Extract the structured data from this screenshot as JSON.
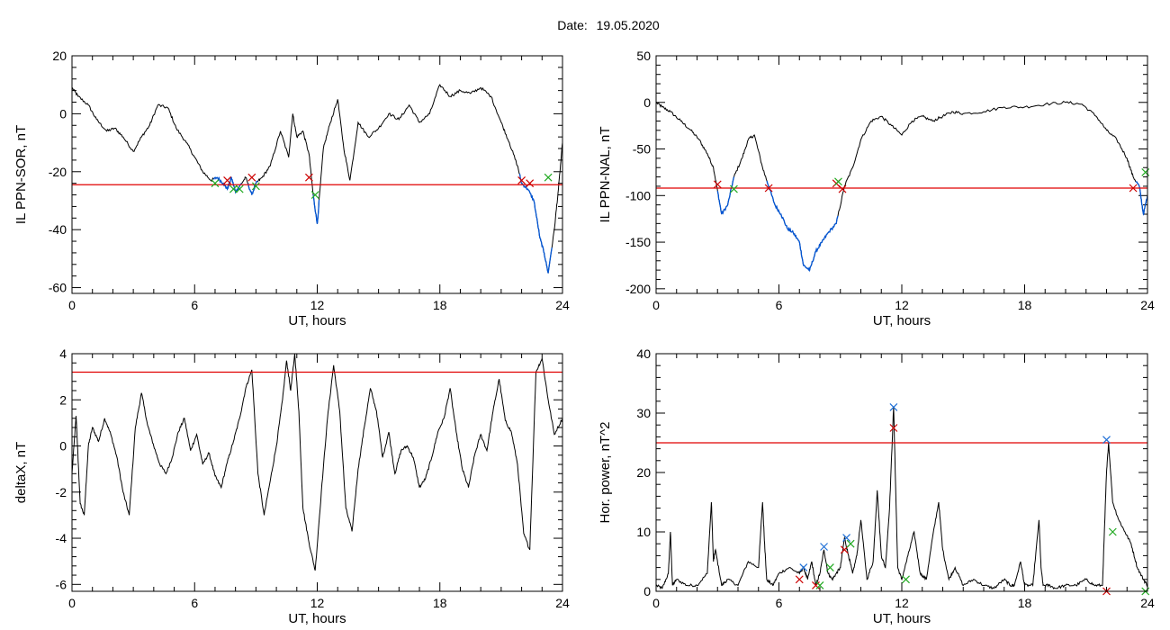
{
  "header": {
    "date_label": "Date:",
    "date_value": "19.05.2020"
  },
  "colors": {
    "trace": "#000000",
    "highlight": "#0055d4",
    "threshold": "#e00000",
    "marker_red": "#cc0000",
    "marker_green": "#22aa22",
    "marker_blue": "#1f6fd6"
  },
  "chart_data": [
    {
      "id": "p1",
      "type": "line",
      "ylabel": "IL PPN-SOR, nT",
      "xlabel": "UT, hours",
      "xlim": [
        0,
        24
      ],
      "ylim": [
        -62,
        20
      ],
      "xticks": [
        0,
        6,
        12,
        18,
        24
      ],
      "yticks": [
        20,
        0,
        -20,
        -40,
        -60
      ],
      "threshold": -24.5,
      "series": [
        {
          "x": [
            0,
            0.3,
            0.8,
            1.2,
            1.7,
            2.1,
            2.5,
            3.0,
            3.4,
            3.8,
            4.2,
            4.7,
            5.1,
            5.6,
            6.0,
            6.4,
            6.8,
            7.1,
            7.4,
            7.6,
            7.8,
            8.0,
            8.2,
            8.5,
            8.8,
            9.0,
            9.3,
            9.7,
            10.2,
            10.6,
            10.8,
            11.0,
            11.3,
            11.6,
            11.8,
            12.0,
            12.3,
            12.6,
            13.0,
            13.3,
            13.6,
            14.0,
            14.5,
            15.0,
            15.5,
            16.0,
            16.5,
            17.0,
            17.5,
            18.0,
            18.5,
            19.0,
            19.5,
            20.0,
            20.5,
            21.0,
            21.4,
            21.8,
            22.0,
            22.3,
            22.6,
            22.9,
            23.1,
            23.3,
            23.6,
            23.8,
            24.0
          ],
          "y": [
            9,
            6,
            3,
            -2,
            -6,
            -5,
            -8,
            -13,
            -8,
            -4,
            3,
            2,
            -5,
            -10,
            -15,
            -20,
            -23,
            -22,
            -24,
            -26,
            -22,
            -27,
            -25,
            -22,
            -28,
            -24,
            -22,
            -18,
            -6,
            -15,
            0,
            -8,
            -6,
            -14,
            -28,
            -38,
            -12,
            -4,
            5,
            -12,
            -23,
            -3,
            -8,
            -5,
            0,
            -2,
            3,
            -3,
            0,
            10,
            6,
            8,
            7,
            9,
            6,
            -3,
            -10,
            -18,
            -24,
            -26,
            -30,
            -43,
            -48,
            -55,
            -40,
            -26,
            -10
          ]
        }
      ],
      "segments": [
        [
          6.9,
          8.3
        ],
        [
          8.6,
          9.1
        ],
        [
          11.8,
          12.1
        ],
        [
          21.9,
          23.5
        ]
      ],
      "markers_red": [
        [
          7.6,
          -23
        ],
        [
          8.8,
          -22
        ],
        [
          11.6,
          -22
        ],
        [
          22.0,
          -23
        ],
        [
          22.4,
          -24
        ]
      ],
      "markers_green": [
        [
          7.0,
          -24
        ],
        [
          7.9,
          -26
        ],
        [
          8.2,
          -26
        ],
        [
          9.0,
          -25
        ],
        [
          11.9,
          -28
        ],
        [
          23.3,
          -22
        ]
      ]
    },
    {
      "id": "p2",
      "type": "line",
      "ylabel": "IL PPN-NAL, nT",
      "xlabel": "UT, hours",
      "xlim": [
        0,
        24
      ],
      "ylim": [
        -205,
        50
      ],
      "xticks": [
        0,
        6,
        12,
        18,
        24
      ],
      "yticks": [
        50,
        0,
        -50,
        -100,
        -150,
        -200
      ],
      "threshold": -92,
      "series": [
        {
          "x": [
            0,
            0.3,
            0.7,
            1.2,
            1.7,
            2.1,
            2.5,
            2.8,
            3.0,
            3.2,
            3.5,
            3.8,
            4.2,
            4.5,
            4.8,
            5.2,
            5.5,
            5.8,
            6.1,
            6.4,
            6.7,
            7.0,
            7.2,
            7.5,
            7.8,
            8.1,
            8.4,
            8.8,
            9.2,
            9.6,
            10.0,
            10.5,
            11.0,
            11.5,
            12.0,
            12.5,
            13.0,
            13.5,
            14.0,
            14.5,
            15.0,
            16.0,
            17.0,
            18.0,
            19.0,
            20.0,
            20.8,
            21.5,
            22.0,
            22.5,
            23.0,
            23.3,
            23.6,
            23.8,
            24.0
          ],
          "y": [
            0,
            -5,
            -10,
            -20,
            -30,
            -40,
            -55,
            -70,
            -95,
            -120,
            -110,
            -80,
            -60,
            -40,
            -35,
            -70,
            -90,
            -110,
            -120,
            -135,
            -140,
            -150,
            -175,
            -180,
            -160,
            -150,
            -140,
            -130,
            -90,
            -70,
            -40,
            -20,
            -15,
            -25,
            -35,
            -20,
            -15,
            -20,
            -15,
            -10,
            -12,
            -10,
            -5,
            -5,
            -2,
            0,
            -2,
            -15,
            -30,
            -40,
            -60,
            -80,
            -90,
            -120,
            -100
          ]
        }
      ],
      "segments": [
        [
          3.0,
          3.8
        ],
        [
          5.4,
          8.9
        ],
        [
          23.4,
          24.0
        ]
      ],
      "markers_red": [
        [
          3.0,
          -88
        ],
        [
          5.5,
          -92
        ],
        [
          8.8,
          -87
        ],
        [
          9.1,
          -93
        ],
        [
          23.3,
          -92
        ]
      ],
      "markers_green": [
        [
          3.8,
          -93
        ],
        [
          8.9,
          -85
        ],
        [
          23.9,
          -75
        ]
      ]
    },
    {
      "id": "p3",
      "type": "line",
      "ylabel": "deltaX, nT",
      "xlabel": "UT, hours",
      "xlim": [
        0,
        24
      ],
      "ylim": [
        -6.3,
        4
      ],
      "xticks": [
        0,
        6,
        12,
        18,
        24
      ],
      "yticks": [
        4,
        2,
        0,
        -2,
        -4,
        -6
      ],
      "threshold": 3.2,
      "series": [
        {
          "x": [
            0,
            0.2,
            0.4,
            0.6,
            0.8,
            1.0,
            1.3,
            1.6,
            1.9,
            2.2,
            2.5,
            2.8,
            3.1,
            3.4,
            3.7,
            4.0,
            4.3,
            4.6,
            4.9,
            5.2,
            5.5,
            5.8,
            6.1,
            6.4,
            6.7,
            7.0,
            7.3,
            7.6,
            7.9,
            8.2,
            8.5,
            8.8,
            9.1,
            9.4,
            9.7,
            10.0,
            10.3,
            10.5,
            10.7,
            10.9,
            11.1,
            11.3,
            11.6,
            11.9,
            12.2,
            12.5,
            12.8,
            13.1,
            13.4,
            13.7,
            14.0,
            14.3,
            14.6,
            14.9,
            15.2,
            15.5,
            15.8,
            16.1,
            16.4,
            16.7,
            17.0,
            17.3,
            17.6,
            17.9,
            18.2,
            18.5,
            18.8,
            19.1,
            19.4,
            19.7,
            20.0,
            20.3,
            20.6,
            20.9,
            21.2,
            21.5,
            21.8,
            22.1,
            22.4,
            22.7,
            23.0,
            23.3,
            23.6,
            24.0
          ],
          "y": [
            -1.2,
            1.3,
            -2.5,
            -3,
            0,
            0.8,
            0.2,
            1.2,
            0.5,
            -0.5,
            -2,
            -3,
            0.8,
            2.3,
            0.9,
            0,
            -0.8,
            -1.2,
            -0.5,
            0.6,
            1.2,
            -0.2,
            0.5,
            -0.8,
            -0.3,
            -1.3,
            -1.8,
            -0.7,
            0.2,
            1.2,
            2.5,
            3.3,
            -1.2,
            -3,
            -1.5,
            0,
            2,
            3.7,
            2.4,
            4,
            1.5,
            -2.7,
            -4.2,
            -5.4,
            -2,
            1.2,
            3.5,
            1.5,
            -2.7,
            -3.7,
            -1,
            0.8,
            2.5,
            1.5,
            -0.5,
            0.6,
            -1.2,
            -0.2,
            0,
            -0.5,
            -1.8,
            -1.4,
            -0.5,
            0.6,
            1.2,
            2.5,
            0.6,
            -1,
            -1.8,
            -0.4,
            0.5,
            -0.2,
            1.5,
            2.9,
            1.1,
            0.6,
            -0.8,
            -3.8,
            -4.5,
            3.2,
            3.8,
            2,
            0.5,
            1.2
          ]
        }
      ]
    },
    {
      "id": "p4",
      "type": "line",
      "ylabel": "Hor. power, nT^2",
      "xlabel": "UT, hours",
      "xlim": [
        0,
        24
      ],
      "ylim": [
        0,
        40
      ],
      "xticks": [
        0,
        6,
        12,
        18,
        24
      ],
      "yticks": [
        40,
        30,
        20,
        10,
        0
      ],
      "threshold": 25,
      "series": [
        {
          "x": [
            0,
            0.3,
            0.6,
            0.7,
            0.8,
            1.0,
            1.5,
            2.0,
            2.5,
            2.7,
            2.8,
            2.9,
            3.2,
            3.5,
            4.0,
            4.5,
            5.0,
            5.2,
            5.3,
            5.4,
            5.7,
            6.0,
            6.5,
            7.0,
            7.2,
            7.4,
            7.6,
            7.8,
            8.0,
            8.2,
            8.4,
            8.6,
            8.8,
            9.0,
            9.2,
            9.4,
            9.6,
            9.8,
            10.0,
            10.3,
            10.6,
            10.8,
            11.0,
            11.2,
            11.4,
            11.6,
            11.8,
            12.0,
            12.3,
            12.6,
            12.9,
            13.2,
            13.5,
            13.8,
            14.0,
            14.3,
            14.6,
            15.0,
            15.5,
            16.0,
            16.5,
            17.0,
            17.3,
            17.5,
            17.8,
            18.0,
            18.4,
            18.7,
            18.8,
            18.9,
            19.2,
            19.5,
            20.0,
            20.5,
            21.0,
            21.4,
            21.8,
            22.0,
            22.1,
            22.3,
            22.6,
            22.9,
            23.2,
            23.5,
            23.8,
            24.0
          ],
          "y": [
            1,
            0.5,
            3,
            10,
            1,
            2,
            1,
            1,
            3,
            15,
            5,
            7,
            1,
            2,
            1,
            5,
            4,
            15,
            8,
            2,
            1,
            3,
            4,
            3,
            4,
            2,
            5,
            1,
            3,
            7,
            3,
            2,
            3,
            4,
            9,
            6,
            3,
            6,
            12,
            2,
            5,
            17,
            6,
            4,
            14,
            31,
            4,
            2,
            6,
            10,
            3,
            2,
            9,
            15,
            7,
            2,
            4,
            1,
            2,
            1,
            0.5,
            2,
            1,
            1,
            5,
            1,
            1,
            12,
            4,
            1,
            1,
            0.5,
            1,
            1,
            2,
            1,
            1,
            20,
            25,
            15,
            12,
            10,
            8,
            4,
            2,
            1
          ]
        }
      ],
      "markers_red": [
        [
          7.0,
          2
        ],
        [
          7.8,
          1
        ],
        [
          9.2,
          7
        ],
        [
          11.6,
          27.5
        ],
        [
          22.0,
          0
        ]
      ],
      "markers_green": [
        [
          8.0,
          1
        ],
        [
          8.5,
          4
        ],
        [
          9.5,
          8
        ],
        [
          12.2,
          2
        ],
        [
          22.3,
          10
        ],
        [
          23.9,
          0
        ]
      ],
      "markers_blue": [
        [
          7.2,
          4
        ],
        [
          8.2,
          7.5
        ],
        [
          9.3,
          9
        ],
        [
          11.6,
          31
        ],
        [
          22.0,
          25.5
        ]
      ]
    }
  ]
}
